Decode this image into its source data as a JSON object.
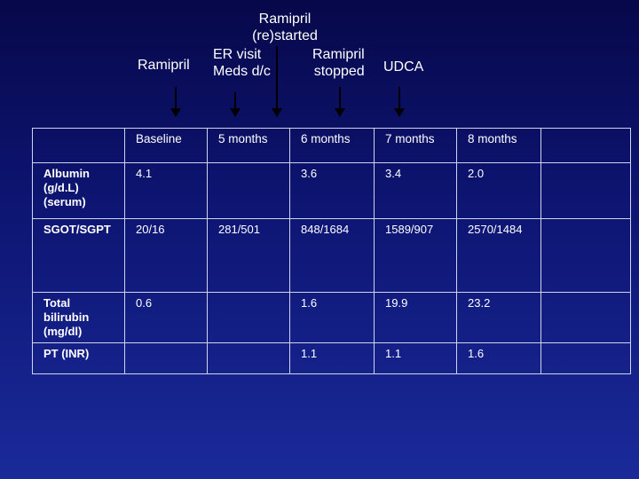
{
  "annotations": {
    "ramipril": "Ramipril",
    "restarted_line1": "Ramipril",
    "restarted_line2": "(re)started",
    "er_line1": "ER visit",
    "er_line2": "Meds d/c",
    "stopped_line1": "Ramipril",
    "stopped_line2": "stopped",
    "udca": "UDCA"
  },
  "table": {
    "headers": [
      "",
      "Baseline",
      " 5 months",
      "6 months",
      "7 months",
      "8 months",
      ""
    ],
    "rows": [
      {
        "label": "Albumin (g/d.L) (serum)",
        "cells": [
          "4.1",
          "",
          "3.6",
          "3.4",
          "2.0",
          ""
        ]
      },
      {
        "label": "SGOT/SGPT",
        "cells": [
          "20/16",
          "281/501",
          "848/1684",
          "1589/907",
          "2570/1484",
          ""
        ]
      },
      {
        "label": "Total bilirubin (mg/dl)",
        "cells": [
          "0.6",
          "",
          "1.6",
          "19.9",
          "23.2",
          ""
        ]
      },
      {
        "label": "PT (INR)",
        "cells": [
          "",
          "",
          "1.1",
          "1.1",
          "1.6",
          ""
        ]
      }
    ]
  }
}
